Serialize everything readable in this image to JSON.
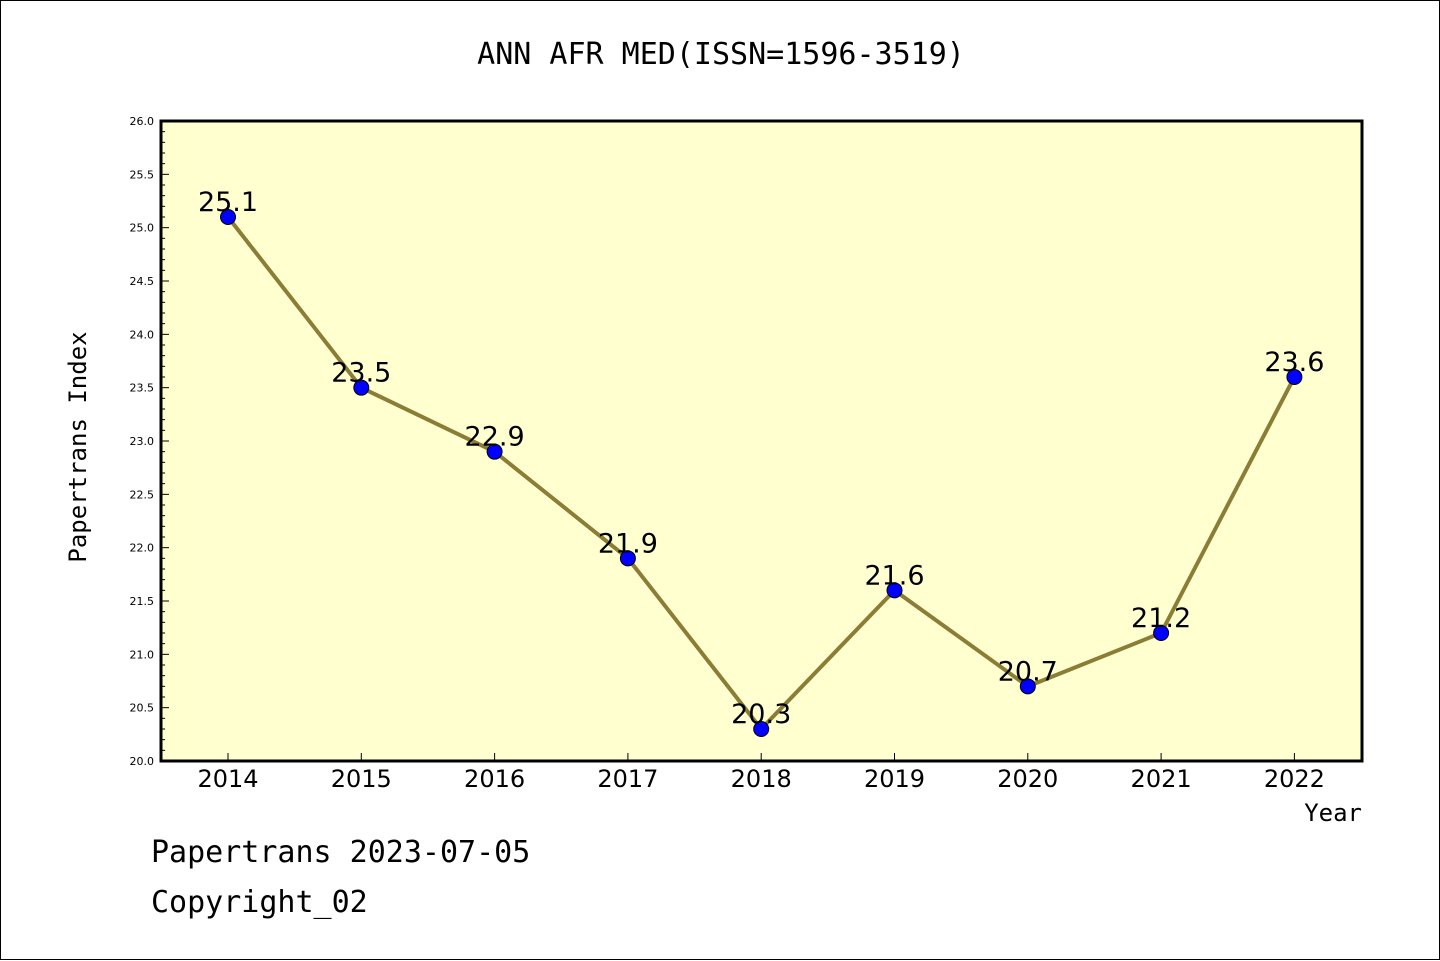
{
  "chart_data": {
    "type": "line",
    "title": "ANN AFR MED(ISSN=1596-3519)",
    "xlabel": "Year",
    "ylabel": "Papertrans Index",
    "categories": [
      "2014",
      "2015",
      "2016",
      "2017",
      "2018",
      "2019",
      "2020",
      "2021",
      "2022"
    ],
    "series": [
      {
        "values": [
          25.1,
          23.5,
          22.9,
          21.9,
          20.3,
          21.6,
          20.7,
          21.2,
          23.6
        ]
      }
    ],
    "data_labels": [
      "25.1",
      "23.5",
      "22.9",
      "21.9",
      "20.3",
      "21.6",
      "20.7",
      "21.2",
      "23.6"
    ],
    "ylim": [
      20.0,
      26.0
    ],
    "yticks": [
      "20.0",
      "20.5",
      "21.0",
      "21.5",
      "22.0",
      "22.5",
      "23.0",
      "23.5",
      "24.0",
      "24.5",
      "25.0",
      "25.5",
      "26.0"
    ],
    "grid": false,
    "colors": {
      "plot_background": "#FFFFD0",
      "line": "#8B7D35",
      "marker": "#0000FF"
    }
  },
  "footer": {
    "line1": "Papertrans 2023-07-05",
    "line2": "Copyright_02"
  }
}
